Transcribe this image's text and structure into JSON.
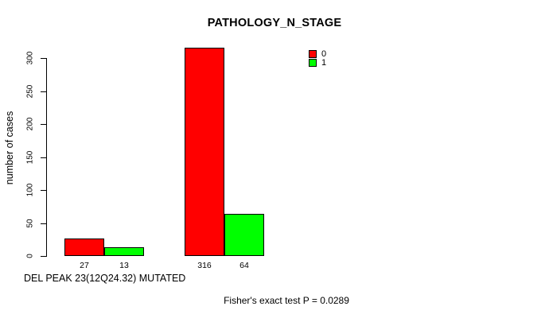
{
  "chart_data": {
    "type": "bar",
    "title": "PATHOLOGY_N_STAGE",
    "ylabel": "number of cases",
    "xlabel": "DEL PEAK 23(12Q24.32) MUTATED",
    "footnote": "Fisher's exact test P = 0.0289",
    "series": [
      {
        "name": "0",
        "color": "#ff0000",
        "values": [
          27,
          316
        ]
      },
      {
        "name": "1",
        "color": "#00ff00",
        "values": [
          13,
          64
        ]
      }
    ],
    "bar_labels": [
      [
        "27",
        "13"
      ],
      [
        "316",
        "64"
      ]
    ],
    "legend": {
      "position": "top-right",
      "entries": [
        {
          "label": "0",
          "color": "#ff0000"
        },
        {
          "label": "1",
          "color": "#00ff00"
        }
      ]
    },
    "yticks": [
      0,
      50,
      100,
      150,
      200,
      250,
      300
    ],
    "ylim": [
      0,
      320
    ],
    "grid": false,
    "bar_border_color": "#000000",
    "background_color": "#ffffff",
    "text_color": "#000000"
  }
}
